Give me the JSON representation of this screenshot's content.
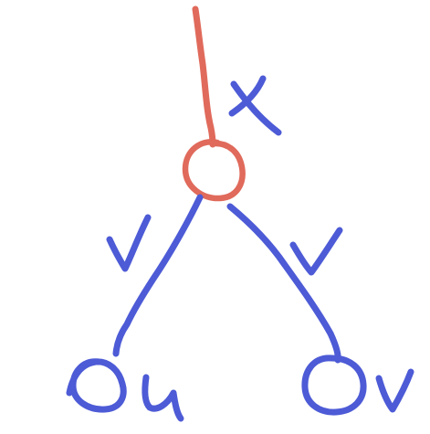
{
  "colors": {
    "red": "#e06a5b",
    "blue": "#4d5bd6",
    "background": "#ffffff"
  },
  "diagram": {
    "top_edge_label": "x",
    "left_edge_label": "v",
    "right_edge_label": "v",
    "left_leaf_label": "u",
    "right_leaf_label": "v",
    "nodes": [
      {
        "id": "root",
        "color_key": "red"
      },
      {
        "id": "left_leaf",
        "color_key": "blue"
      },
      {
        "id": "right_leaf",
        "color_key": "blue"
      }
    ],
    "edges": [
      {
        "id": "top",
        "color_key": "red"
      },
      {
        "id": "left",
        "color_key": "blue"
      },
      {
        "id": "right",
        "color_key": "blue"
      }
    ]
  }
}
